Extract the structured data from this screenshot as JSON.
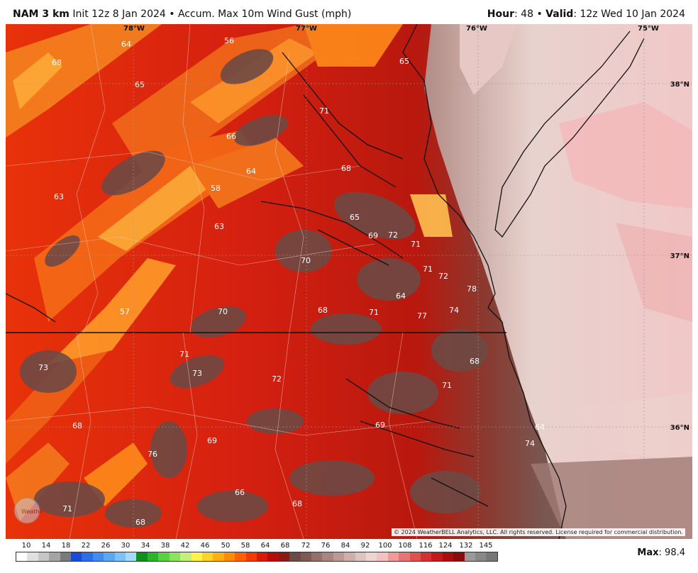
{
  "header": {
    "model": "NAM 3 km",
    "init": "Init 12z 8 Jan 2024",
    "separator": "•",
    "product": "Accum. Max 10m Wind Gust (mph)",
    "hour_label": "Hour",
    "hour_value": "48",
    "valid_label": "Valid",
    "valid_value": "12z Wed 10 Jan 2024"
  },
  "map": {
    "lon_labels": [
      "78°W",
      "77°W",
      "76°W",
      "75°W"
    ],
    "lat_labels": [
      "38°N",
      "37°N",
      "36°N"
    ],
    "value_labels": [
      "64",
      "56",
      "65",
      "68",
      "65",
      "71",
      "66",
      "68",
      "64",
      "58",
      "63",
      "65",
      "63",
      "69",
      "72",
      "71",
      "70",
      "71",
      "72",
      "64",
      "78",
      "68",
      "70",
      "71",
      "57",
      "77",
      "74",
      "71",
      "73",
      "73",
      "72",
      "68",
      "71",
      "69",
      "64",
      "68",
      "69",
      "74",
      "76",
      "66",
      "68",
      "71",
      "68"
    ],
    "copyright": "© 2024 WeatherBELL Analytics, LLC. All rights reserved. License required for commercial distribution.",
    "logo_text": "WeatherBELL"
  },
  "colorbar": {
    "ticks": [
      "10",
      "14",
      "18",
      "22",
      "26",
      "30",
      "34",
      "38",
      "42",
      "46",
      "50",
      "58",
      "64",
      "68",
      "72",
      "76",
      "84",
      "92",
      "100",
      "108",
      "116",
      "124",
      "132",
      "145"
    ],
    "colors": [
      "#ffffff",
      "#e0e0e0",
      "#c6c6c6",
      "#a4a4a4",
      "#7a7a7a",
      "#1a4cd6",
      "#2a6ee8",
      "#3f8df0",
      "#5aa8f5",
      "#7cc2f9",
      "#a6dafc",
      "#0f8f1e",
      "#2bb52b",
      "#58d23f",
      "#8ce45a",
      "#c3f07c",
      "#fff24a",
      "#ffd22a",
      "#ffae14",
      "#ff8a0a",
      "#ff5f05",
      "#f23a05",
      "#d91a06",
      "#b50d0a",
      "#8a1a14",
      "#6e4a44",
      "#7f5a53",
      "#956f68",
      "#aa857e",
      "#bc9a94",
      "#cdb0aa",
      "#dec4bf",
      "#ecd6d2",
      "#f4c0c0",
      "#f09a9a",
      "#e87575",
      "#e05252",
      "#d23232",
      "#c21a1a",
      "#a80f0f",
      "#8f0a0a",
      "#9a9a9a",
      "#888888",
      "#777777"
    ]
  },
  "max": {
    "label": "Max",
    "value": "98.4"
  }
}
